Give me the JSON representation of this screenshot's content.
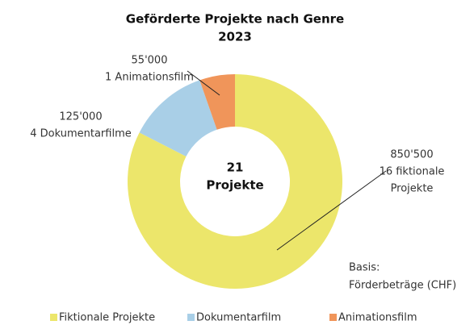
{
  "chart_data": {
    "type": "donut",
    "title": "Geförderte Projekte nach Genre",
    "subtitle": "2023",
    "categories": [
      "Fiktionale Projekte",
      "Dokumentarfilm",
      "Animationsfilm"
    ],
    "values": [
      850500,
      125000,
      55000
    ],
    "value_labels": [
      "850'500",
      "125'000",
      "55'000"
    ],
    "notes": [
      [
        "16 fiktionale",
        "Projekte"
      ],
      [
        "4 Dokumentarfilme"
      ],
      [
        "1 Animationsfilm"
      ]
    ],
    "colors": [
      "#ece66b",
      "#a9cfe7",
      "#f0955a"
    ],
    "center_label": [
      "21",
      "Projekte"
    ],
    "basis": [
      "Basis:",
      "Förderbeträge (CHF)"
    ],
    "legend": "bottom"
  }
}
